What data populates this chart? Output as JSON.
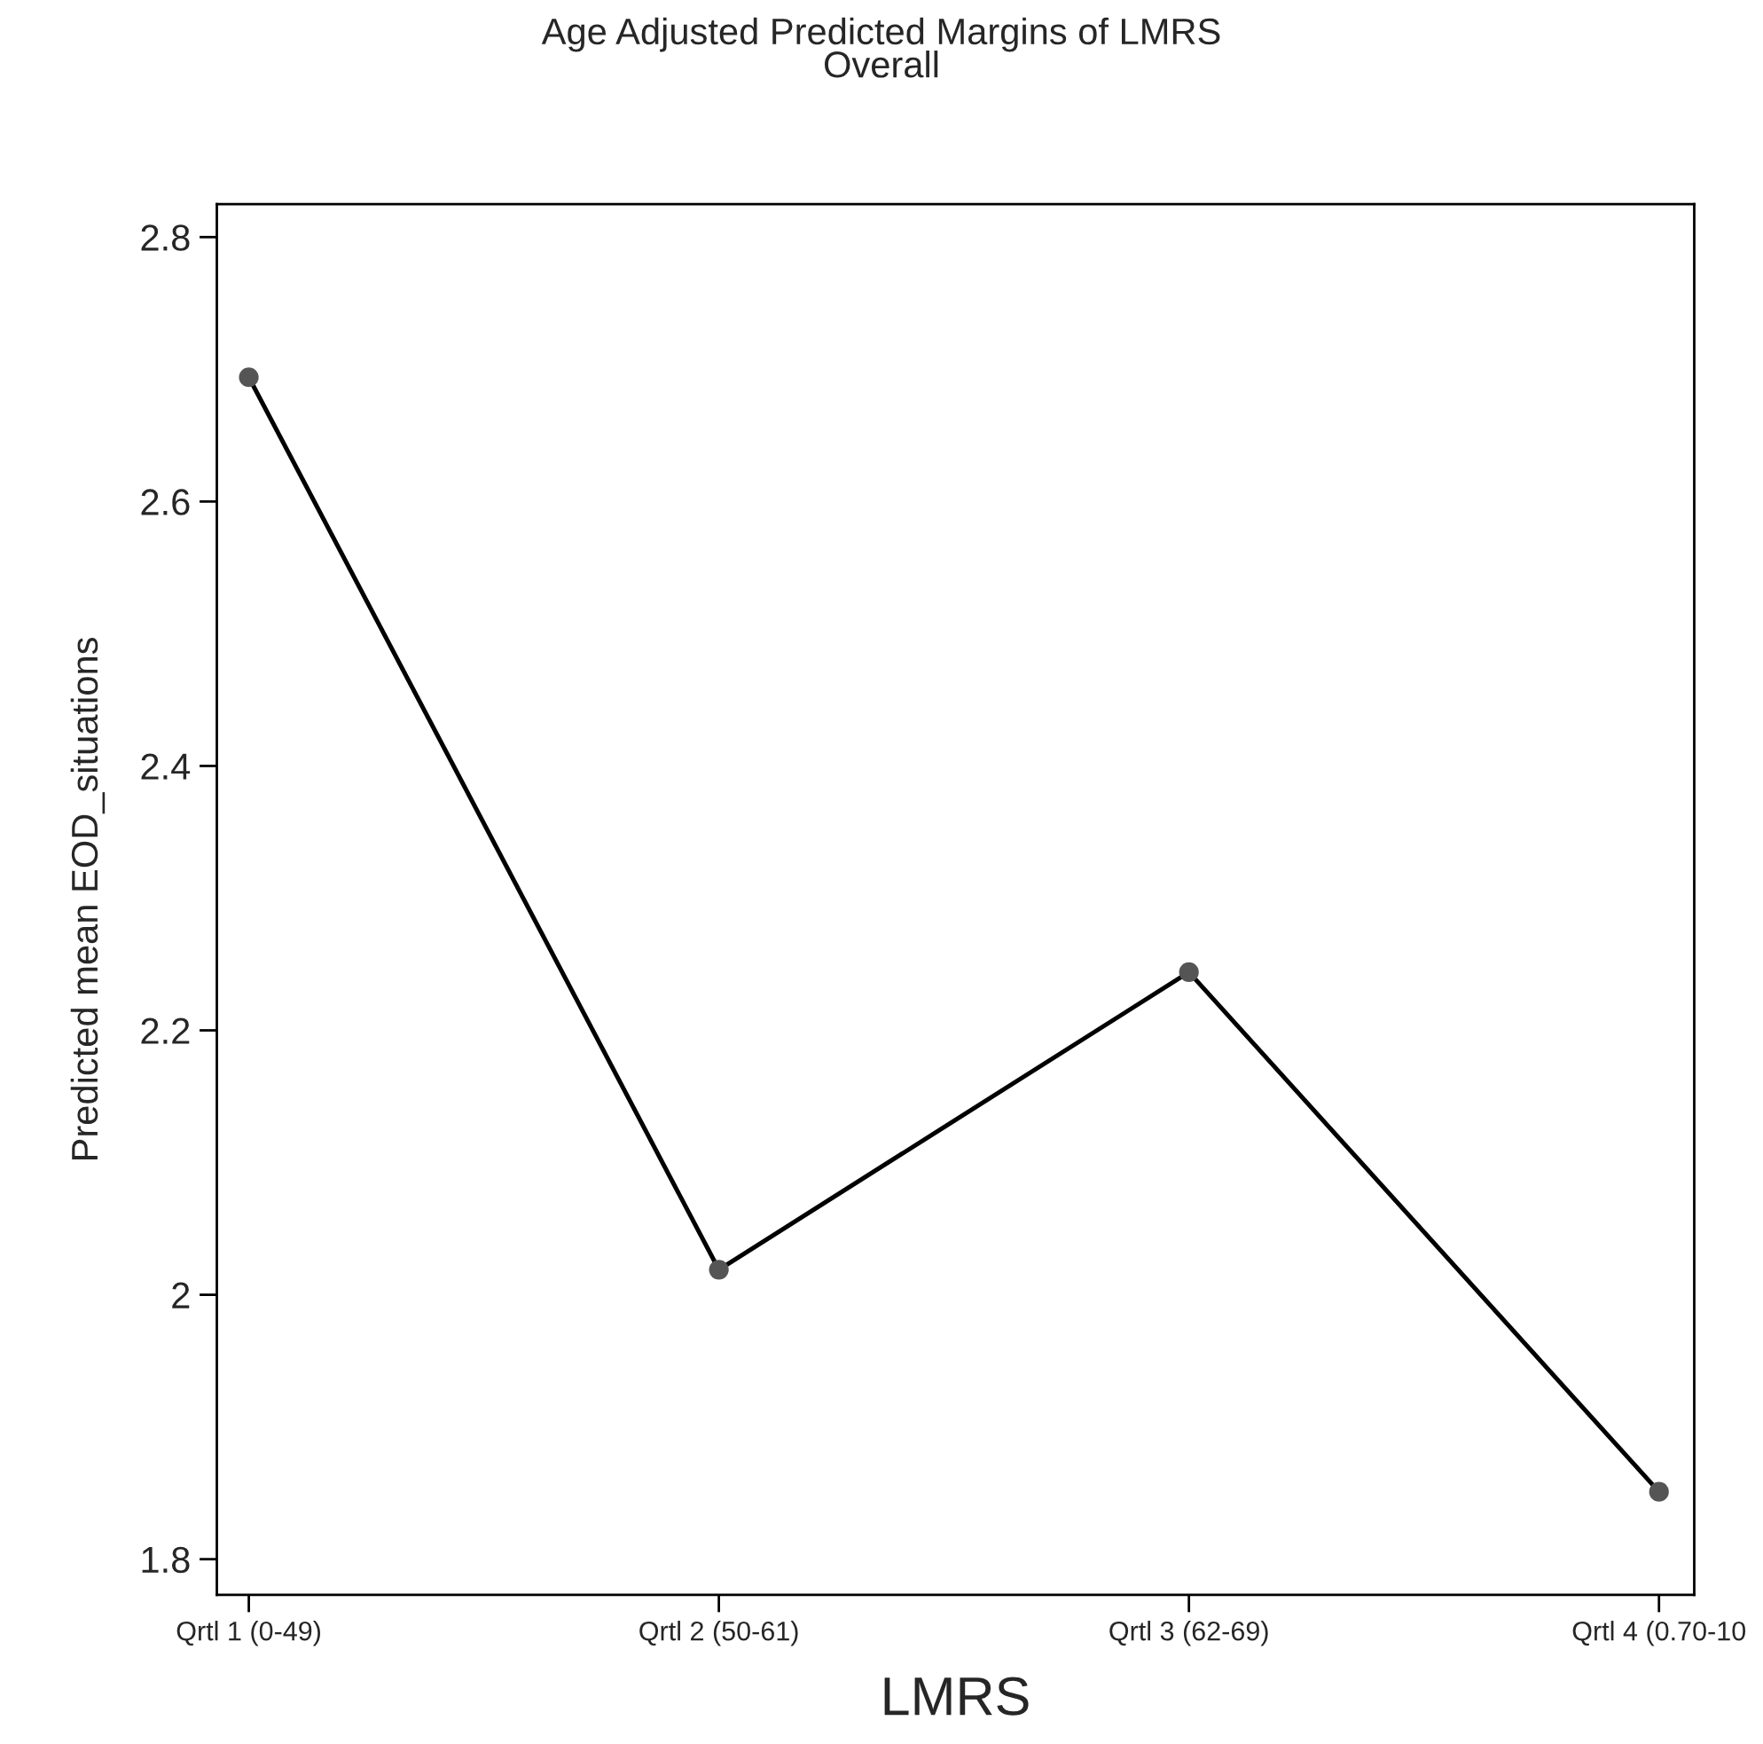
{
  "chart_data": {
    "type": "line",
    "title": "Age Adjusted Predicted Margins of LMRS\nOverall",
    "xlabel": "LMRS",
    "ylabel": "Predicted mean EOD_situations",
    "categories": [
      "Qrtl 1 (0-49)",
      "Qrtl 2 (50-61)",
      "Qrtl 3 (62-69)",
      "Qrtl 4 (0.70-10"
    ],
    "series": [
      {
        "color": "#000000",
        "colors": [
          "#555555",
          "#555555",
          "#555555",
          "#555555"
        ],
        "values": [
          2.694,
          2.019,
          2.244,
          1.851
        ]
      }
    ],
    "marker": "circle",
    "line_style": "solid",
    "ylim": [
      1.773,
      2.825
    ],
    "yticks": [
      1.8,
      2,
      2.2,
      2.4,
      2.6,
      2.8
    ],
    "grid": false,
    "legend": false
  }
}
